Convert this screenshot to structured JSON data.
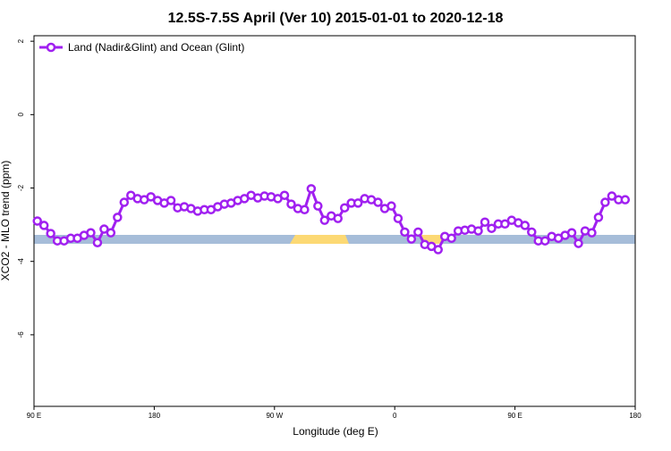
{
  "chart_data": {
    "type": "line",
    "title": "12.5S-7.5S April (Ver 10)   2015-01-01 to 2020-12-18",
    "x_label": "Longitude (deg E)",
    "y_label": "XCO2 - MLO trend (ppm)",
    "xlim": [
      90,
      540
    ],
    "xticks": [
      {
        "value": 90,
        "label": "90 E"
      },
      180,
      {
        "value": 270,
        "label": "90 W"
      },
      {
        "value": 360,
        "label": "0"
      },
      {
        "value": 450,
        "label": "90 E"
      },
      {
        "value": 540,
        "label": "180"
      }
    ],
    "ylim": [
      -7.95,
      2.15
    ],
    "yticks": [
      2,
      0,
      -2,
      -4,
      -6
    ],
    "legend": "top-left",
    "x": [
      92.5,
      97.5,
      102.5,
      107.5,
      112.5,
      117.5,
      122.5,
      127.5,
      132.5,
      137.5,
      142.5,
      147.5,
      152.5,
      157.5,
      162.5,
      167.5,
      172.5,
      177.5,
      182.5,
      187.5,
      192.5,
      197.5,
      202.5,
      207.5,
      212.5,
      217.5,
      222.5,
      227.5,
      232.5,
      237.5,
      242.5,
      247.5,
      252.5,
      257.5,
      262.5,
      267.5,
      272.5,
      277.5,
      282.5,
      287.5,
      292.5,
      297.5,
      302.5,
      307.5,
      312.5,
      317.5,
      322.5,
      327.5,
      332.5,
      337.5,
      342.5,
      347.5,
      352.5,
      357.5,
      362.5,
      367.5,
      372.5,
      377.5,
      382.5,
      387.5,
      392.5,
      397.5,
      402.5,
      407.5,
      412.5,
      417.5,
      422.5,
      427.5,
      432.5,
      437.5,
      442.5,
      447.5,
      452.5,
      457.5,
      462.5,
      467.5,
      472.5,
      477.5,
      482.5,
      487.5,
      492.5,
      497.5,
      502.5,
      507.5,
      512.5,
      517.5,
      522.5,
      527.5,
      532.5
    ],
    "series": [
      {
        "name": "Land (Nadir&Glint) and Ocean (Glint)",
        "color": "#a020f0",
        "values": [
          -2.9,
          -3.02,
          -3.24,
          -3.44,
          -3.44,
          -3.37,
          -3.37,
          -3.29,
          -3.22,
          -3.49,
          -3.12,
          -3.22,
          -2.8,
          -2.39,
          -2.2,
          -2.29,
          -2.32,
          -2.24,
          -2.34,
          -2.41,
          -2.34,
          -2.54,
          -2.51,
          -2.56,
          -2.63,
          -2.59,
          -2.59,
          -2.51,
          -2.44,
          -2.41,
          -2.34,
          -2.29,
          -2.2,
          -2.27,
          -2.22,
          -2.24,
          -2.29,
          -2.2,
          -2.44,
          -2.56,
          -2.59,
          -2.02,
          -2.49,
          -2.88,
          -2.76,
          -2.83,
          -2.54,
          -2.41,
          -2.41,
          -2.29,
          -2.32,
          -2.39,
          -2.56,
          -2.49,
          -2.83,
          -3.2,
          -3.39,
          -3.2,
          -3.54,
          -3.59,
          -3.68,
          -3.32,
          -3.37,
          -3.17,
          -3.15,
          -3.12,
          -3.17,
          -2.93,
          -3.1,
          -2.98,
          -2.98,
          -2.88,
          -2.95,
          -3.02,
          -3.2,
          -3.44,
          -3.44,
          -3.32,
          -3.37,
          -3.29,
          -3.22,
          -3.51,
          -3.17,
          -3.22,
          -2.8,
          -2.39,
          -2.22,
          -2.32,
          -2.32
        ]
      }
    ]
  }
}
